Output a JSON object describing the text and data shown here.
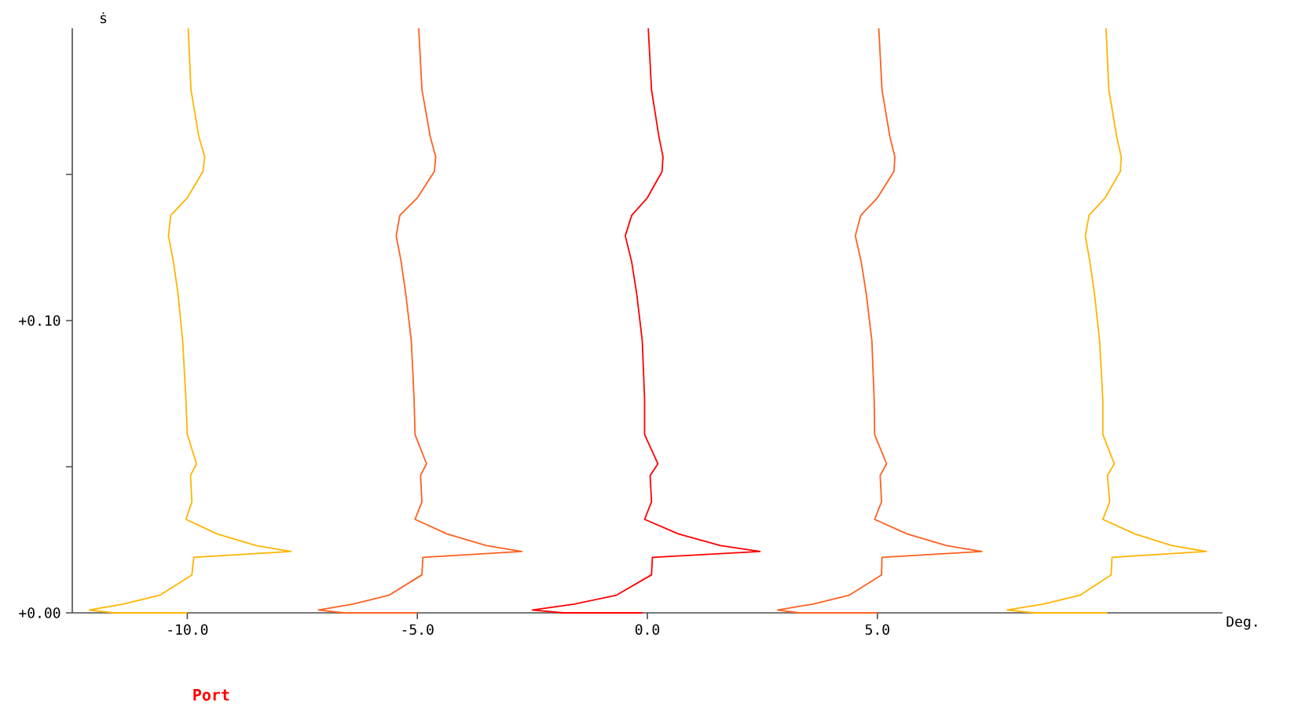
{
  "chart_data": {
    "type": "line",
    "ylabel": "ṡ",
    "xlabel": "Deg.",
    "annotations": [
      "Port"
    ],
    "xlim": [
      -12.5,
      12.5
    ],
    "ylim": [
      0,
      0.2
    ],
    "xticks": [
      {
        "value": -10,
        "label": "-10.0"
      },
      {
        "value": -5,
        "label": "-5.0"
      },
      {
        "value": 0,
        "label": "0.0"
      },
      {
        "value": 5,
        "label": "5.0"
      }
    ],
    "yticks": [
      {
        "value": 0,
        "label": "+0.00"
      },
      {
        "value": 0.05,
        "label": null
      },
      {
        "value": 0.1,
        "label": "+0.10"
      },
      {
        "value": 0.15,
        "label": null
      }
    ],
    "marker": "none",
    "line_style": "solid",
    "series": [
      {
        "color": "#ffb400",
        "x": [
          -9.98,
          -9.92,
          -9.75,
          -9.62,
          -9.66,
          -10.0,
          -10.36,
          -10.41,
          -10.3,
          -10.2,
          -10.1,
          -10.03,
          -10.0,
          -9.8,
          -9.93,
          -9.9,
          -10.03,
          -9.35,
          -8.5,
          -7.75,
          -9.86,
          -9.9,
          -10.6,
          -11.4,
          -12.13,
          -11.6,
          -10.0
        ],
        "values": [
          0.2,
          0.179,
          0.163,
          0.156,
          0.151,
          0.142,
          0.136,
          0.129,
          0.12,
          0.109,
          0.093,
          0.073,
          0.061,
          0.051,
          0.047,
          0.038,
          0.032,
          0.027,
          0.023,
          0.021,
          0.019,
          0.013,
          0.006,
          0.003,
          0.001,
          0.0,
          0.0
        ]
      },
      {
        "color": "#ff6020",
        "x": [
          -4.97,
          -4.9,
          -4.72,
          -4.6,
          -4.63,
          -5.0,
          -5.38,
          -5.46,
          -5.35,
          -5.25,
          -5.13,
          -5.07,
          -5.05,
          -4.8,
          -4.93,
          -4.9,
          -5.05,
          -4.35,
          -3.5,
          -2.73,
          -4.88,
          -4.9,
          -5.62,
          -6.4,
          -7.15,
          -6.6,
          -5.0
        ],
        "values": [
          0.2,
          0.179,
          0.163,
          0.156,
          0.151,
          0.142,
          0.136,
          0.129,
          0.12,
          0.109,
          0.093,
          0.073,
          0.061,
          0.051,
          0.047,
          0.038,
          0.032,
          0.027,
          0.023,
          0.021,
          0.019,
          0.013,
          0.006,
          0.003,
          0.001,
          0.0,
          0.0
        ]
      },
      {
        "color": "#ff0000",
        "x": [
          0.02,
          0.09,
          0.25,
          0.34,
          0.32,
          0.0,
          -0.34,
          -0.48,
          -0.34,
          -0.23,
          -0.11,
          -0.06,
          -0.06,
          0.23,
          0.06,
          0.09,
          -0.06,
          0.68,
          1.59,
          2.45,
          0.11,
          0.09,
          -0.68,
          -1.59,
          -2.5,
          -1.82,
          -0.11
        ],
        "values": [
          0.2,
          0.179,
          0.163,
          0.156,
          0.151,
          0.142,
          0.136,
          0.129,
          0.12,
          0.109,
          0.093,
          0.073,
          0.061,
          0.051,
          0.047,
          0.038,
          0.032,
          0.027,
          0.023,
          0.021,
          0.019,
          0.013,
          0.006,
          0.003,
          0.001,
          0.0,
          0.0
        ]
      },
      {
        "color": "#ff6020",
        "x": [
          5.03,
          5.1,
          5.27,
          5.38,
          5.36,
          5.0,
          4.64,
          4.52,
          4.65,
          4.76,
          4.88,
          4.93,
          4.94,
          5.2,
          5.06,
          5.09,
          4.94,
          5.65,
          6.5,
          7.27,
          5.1,
          5.09,
          4.38,
          3.6,
          2.83,
          3.3,
          5.0
        ],
        "values": [
          0.2,
          0.179,
          0.163,
          0.156,
          0.151,
          0.142,
          0.136,
          0.129,
          0.12,
          0.109,
          0.093,
          0.073,
          0.061,
          0.051,
          0.047,
          0.038,
          0.032,
          0.027,
          0.023,
          0.021,
          0.019,
          0.013,
          0.006,
          0.003,
          0.001,
          0.0,
          0.0
        ]
      },
      {
        "color": "#ffb400",
        "x": [
          9.97,
          10.03,
          10.2,
          10.3,
          10.28,
          9.95,
          9.6,
          9.52,
          9.62,
          9.72,
          9.83,
          9.9,
          9.9,
          10.15,
          10.0,
          10.05,
          9.9,
          10.6,
          11.4,
          12.15,
          10.1,
          10.08,
          9.4,
          8.6,
          7.82,
          8.4,
          10.0
        ],
        "values": [
          0.2,
          0.179,
          0.163,
          0.156,
          0.151,
          0.142,
          0.136,
          0.129,
          0.12,
          0.109,
          0.093,
          0.073,
          0.061,
          0.051,
          0.047,
          0.038,
          0.032,
          0.027,
          0.023,
          0.021,
          0.019,
          0.013,
          0.006,
          0.003,
          0.001,
          0.0,
          0.0
        ]
      }
    ]
  }
}
